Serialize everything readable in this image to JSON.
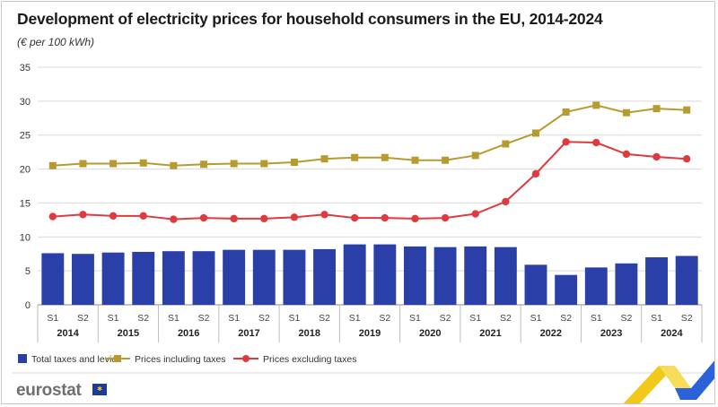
{
  "title": "Development of electricity prices for household consumers in the EU, 2014-2024",
  "subtitle": "(€ per 100 kWh)",
  "logo_text": "eurostat",
  "chart_data": {
    "type": "bar",
    "title": "Development of electricity prices for household consumers in the EU, 2014-2024",
    "unit": "(€ per 100 kWh)",
    "ylim": [
      0,
      35
    ],
    "yticks": [
      0,
      5,
      10,
      15,
      20,
      25,
      30,
      35
    ],
    "grid": true,
    "legend_position": "bottom-left",
    "categories": [
      "S1",
      "S2",
      "S1",
      "S2",
      "S1",
      "S2",
      "S1",
      "S2",
      "S1",
      "S2",
      "S1",
      "S2",
      "S1",
      "S2",
      "S1",
      "S2",
      "S1",
      "S2",
      "S1",
      "S2",
      "S1",
      "S2"
    ],
    "years": [
      "2014",
      "2015",
      "2016",
      "2017",
      "2018",
      "2019",
      "2020",
      "2021",
      "2022",
      "2023",
      "2024"
    ],
    "series": [
      {
        "name": "Total taxes and levies",
        "type": "bar",
        "color": "#2a3fa8",
        "values": [
          7.6,
          7.5,
          7.7,
          7.8,
          7.9,
          7.9,
          8.1,
          8.1,
          8.1,
          8.2,
          8.9,
          8.9,
          8.6,
          8.5,
          8.6,
          8.5,
          5.9,
          4.4,
          5.5,
          6.1,
          7.0,
          7.2
        ]
      },
      {
        "name": "Prices including taxes",
        "type": "line",
        "marker": "square",
        "color": "#b89b2f",
        "values": [
          20.5,
          20.8,
          20.8,
          20.9,
          20.5,
          20.7,
          20.8,
          20.8,
          21.0,
          21.5,
          21.7,
          21.7,
          21.3,
          21.3,
          22.0,
          23.7,
          25.3,
          28.4,
          29.4,
          28.3,
          28.9,
          28.7
        ]
      },
      {
        "name": "Prices excluding taxes",
        "type": "line",
        "marker": "circle",
        "color": "#e0393e",
        "values": [
          13.0,
          13.3,
          13.1,
          13.1,
          12.6,
          12.8,
          12.7,
          12.7,
          12.9,
          13.3,
          12.8,
          12.8,
          12.7,
          12.8,
          13.4,
          15.2,
          19.3,
          24.0,
          23.9,
          22.2,
          21.8,
          21.5
        ]
      }
    ]
  }
}
